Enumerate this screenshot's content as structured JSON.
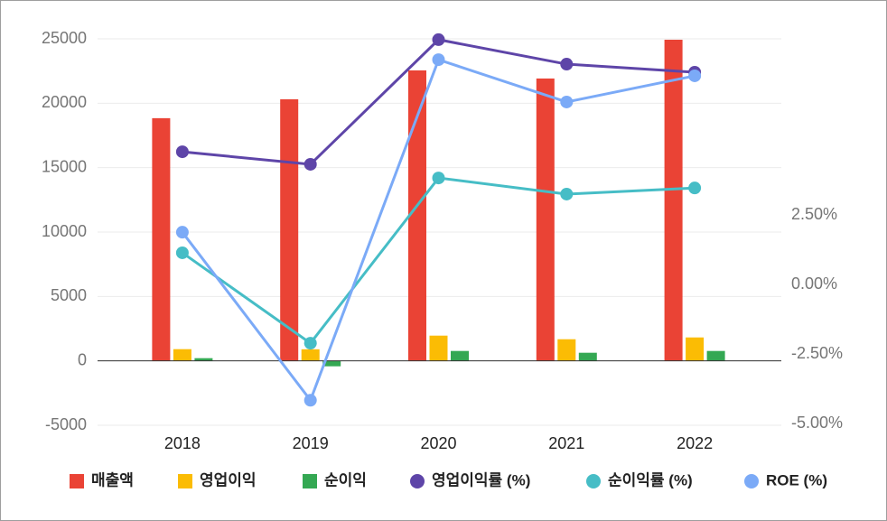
{
  "chart_data": {
    "type": "bar-line",
    "categories": [
      "2018",
      "2019",
      "2020",
      "2021",
      "2022"
    ],
    "series": [
      {
        "name": "매출액",
        "color": "#ea4335",
        "kind": "bar",
        "values": [
          18840,
          20310,
          22550,
          21920,
          24930
        ]
      },
      {
        "name": "영업이익",
        "color": "#fbbc04",
        "kind": "bar",
        "values": [
          910,
          900,
          1960,
          1680,
          1820
        ]
      },
      {
        "name": "순이익",
        "color": "#34a853",
        "kind": "bar",
        "values": [
          210,
          -420,
          770,
          630,
          770
        ]
      },
      {
        "name": "영업이익률 (%)",
        "color": "#5e45a8",
        "kind": "line",
        "axis": "y2",
        "values": [
          4.77,
          4.32,
          8.8,
          7.92,
          7.63
        ]
      },
      {
        "name": "순이익률 (%)",
        "color": "#46bdc6",
        "kind": "line",
        "axis": "y2",
        "values": [
          1.14,
          -2.11,
          3.83,
          3.25,
          3.47
        ]
      },
      {
        "name": "ROE (%)",
        "color": "#7baaf7",
        "kind": "line",
        "axis": "y2",
        "values": [
          1.88,
          -4.16,
          8.08,
          6.56,
          7.5
        ]
      }
    ],
    "ylim": [
      -5000,
      25000
    ],
    "yticks": [
      -5000,
      0,
      5000,
      10000,
      15000,
      20000,
      25000
    ],
    "y2lim": [
      -5.06,
      8.83
    ],
    "y2ticks": [
      {
        "value": -5,
        "label": "-5.00%"
      },
      {
        "value": -2.5,
        "label": "-2.50%"
      },
      {
        "value": 0,
        "label": "0.00%"
      },
      {
        "value": 2.5,
        "label": "2.50%"
      }
    ],
    "grid": true,
    "legend": "bottom"
  }
}
